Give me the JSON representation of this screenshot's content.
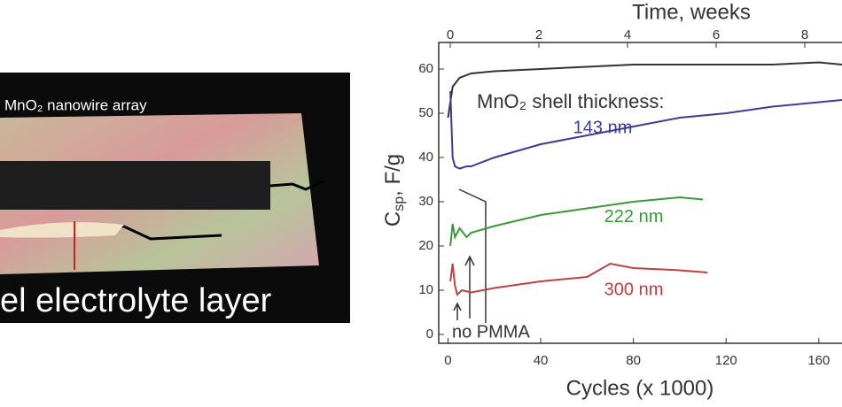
{
  "photo": {
    "labels": [
      "MnO₂ nanowire array",
      "el electrolyte layer"
    ]
  },
  "chart_data": {
    "type": "line",
    "x_label": "Cycles (x 1000)",
    "x2_label": "Time, weeks",
    "y_label": [
      "C",
      "sp",
      ", F/g"
    ],
    "xlim": [
      -4,
      170
    ],
    "xticks": [
      0,
      40,
      80,
      120,
      160
    ],
    "x2lim": [
      -0.26,
      8.84
    ],
    "x2ticks": [
      0,
      2,
      4,
      6,
      8
    ],
    "ylim": [
      -2,
      66
    ],
    "yticks": [
      0,
      10,
      20,
      30,
      40,
      50,
      60
    ],
    "annotations": [
      "MnO₂ shell thickness:",
      "no PMMA"
    ],
    "series": [
      {
        "color": "#333333",
        "x": [
          0,
          2,
          5,
          10,
          20,
          40,
          60,
          80,
          100,
          120,
          140,
          160,
          170
        ],
        "values": [
          49,
          56,
          58,
          59,
          59.5,
          60,
          60.5,
          61,
          61,
          61,
          61,
          61.5,
          61
        ]
      },
      {
        "name": "143 nm",
        "color": "#3b3b9a",
        "x": [
          1,
          2,
          3,
          5,
          8,
          10,
          20,
          40,
          60,
          80,
          100,
          120,
          140,
          160,
          170
        ],
        "values": [
          55,
          40,
          38,
          37.5,
          38,
          38,
          40,
          43,
          45,
          47,
          49,
          50,
          51.5,
          52.5,
          53
        ]
      },
      {
        "name": "222 nm",
        "color": "#3a9a3a",
        "x": [
          1,
          2,
          3,
          5,
          8,
          10,
          20,
          40,
          60,
          80,
          100,
          110
        ],
        "values": [
          20,
          25,
          22,
          24,
          22,
          23,
          24.5,
          27,
          28.5,
          30,
          31,
          30.5
        ]
      },
      {
        "name": "300 nm",
        "color": "#c04040",
        "x": [
          1,
          2,
          3,
          4,
          6,
          10,
          20,
          40,
          60,
          70,
          80,
          100,
          112
        ],
        "values": [
          12,
          16,
          11,
          9,
          10,
          9.5,
          10.5,
          12,
          13,
          16,
          15,
          14.5,
          14
        ]
      }
    ]
  }
}
